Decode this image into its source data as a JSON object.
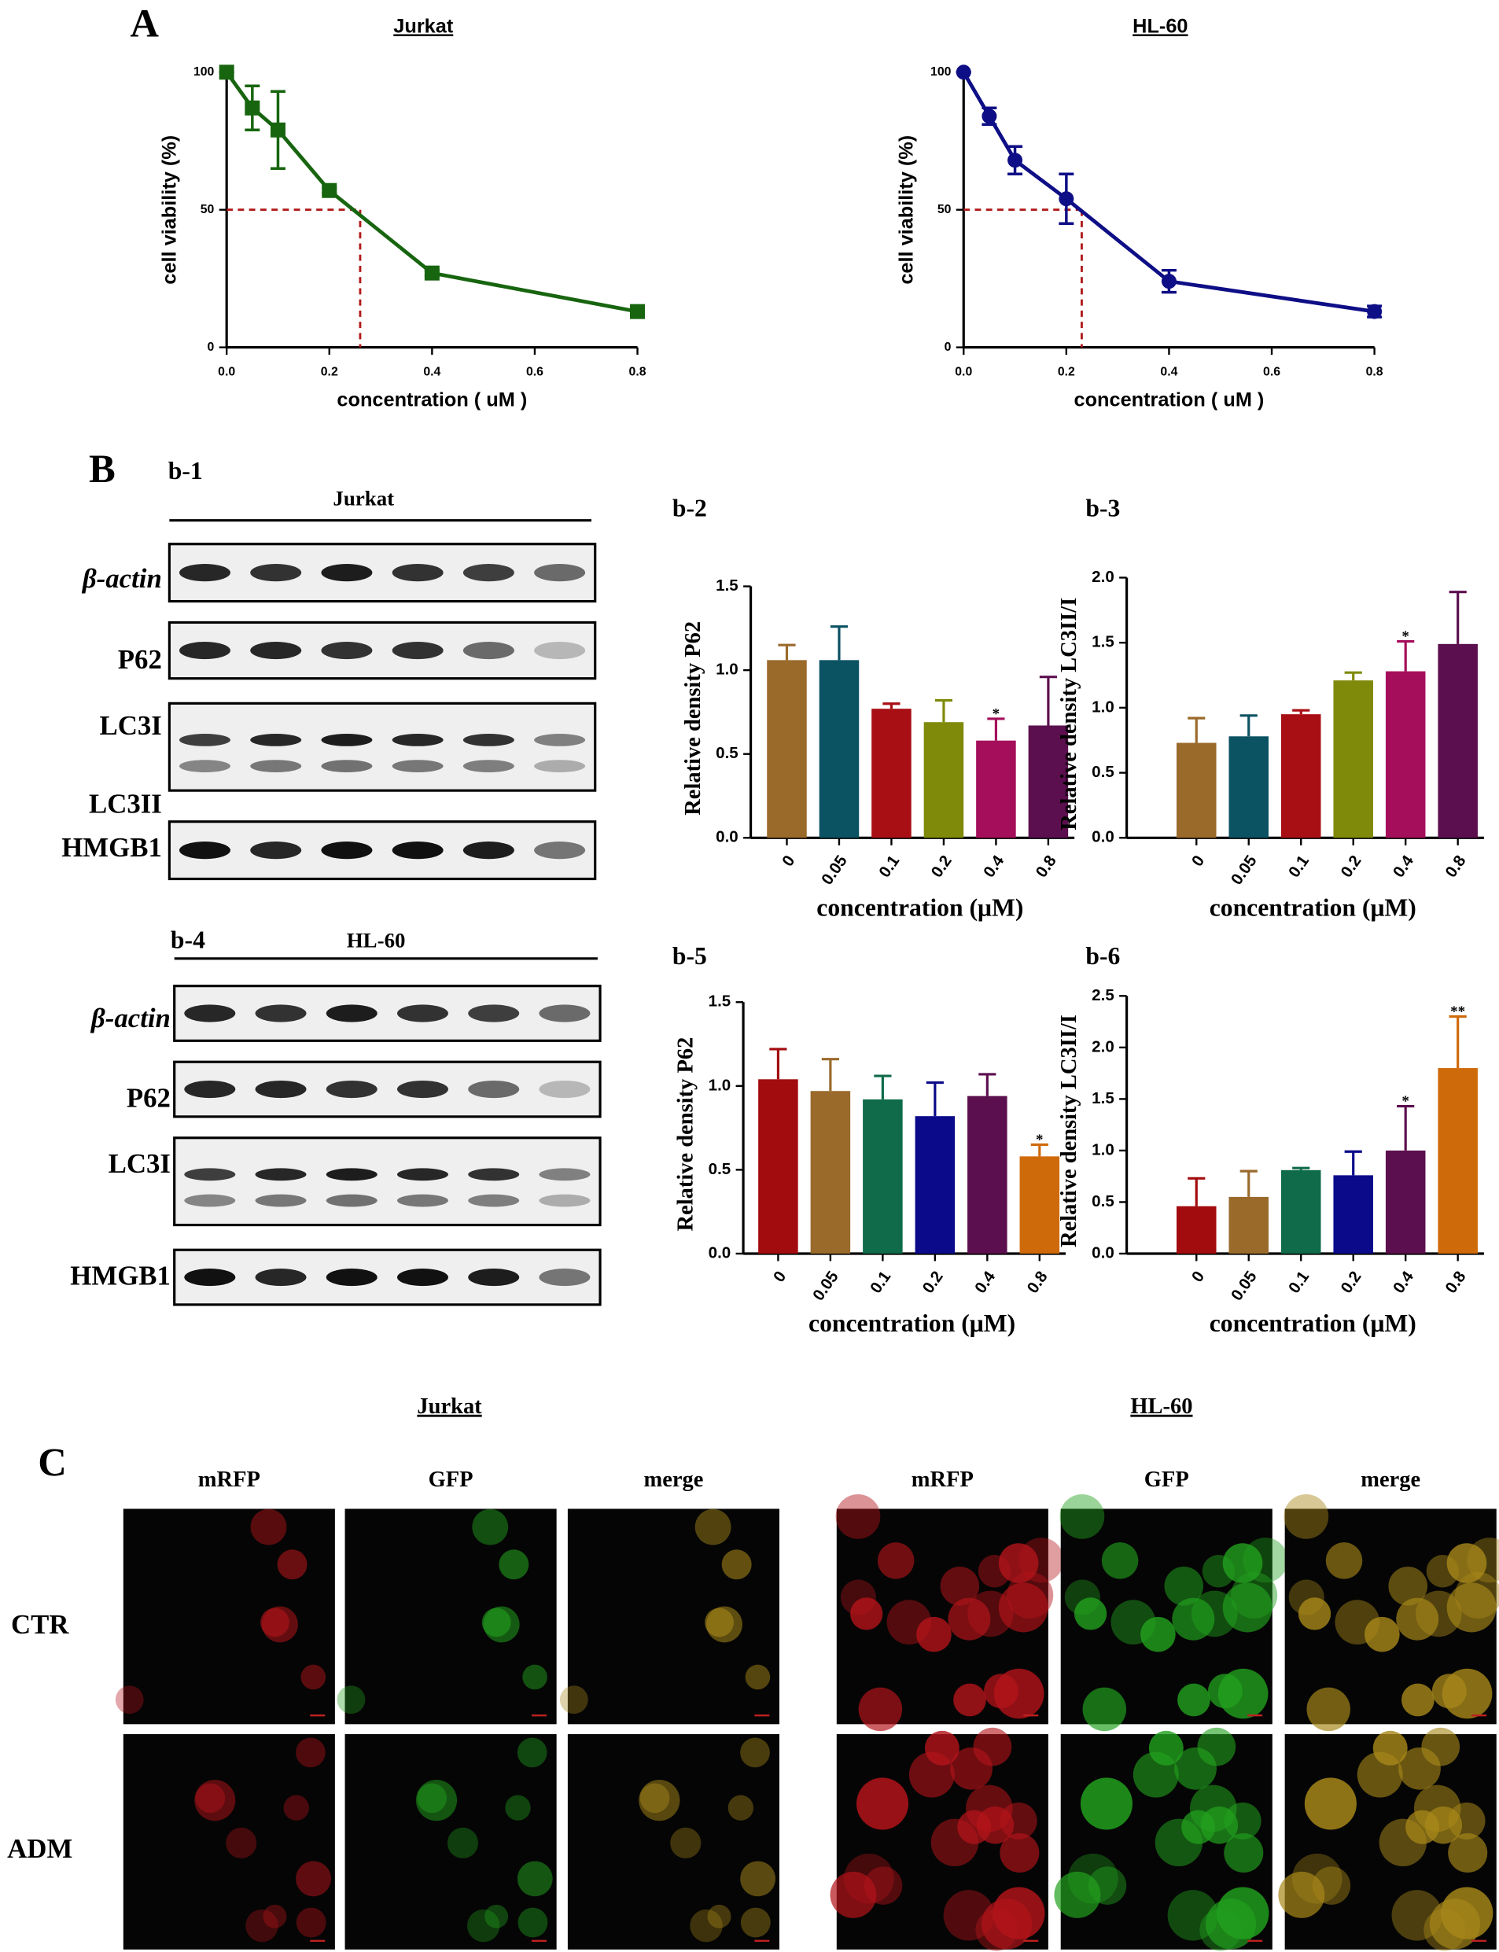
{
  "panel_labels": [
    "A",
    "B",
    "C"
  ],
  "chart_data": [
    {
      "type": "line",
      "title": "Jurkat",
      "xlabel": "concentration ( uM )",
      "ylabel": "cell viability (%)",
      "x": [
        0,
        0.05,
        0.1,
        0.2,
        0.4,
        0.8
      ],
      "series": [
        {
          "color": "#17650f",
          "marker": "square",
          "values": [
            100,
            87,
            79,
            57,
            27,
            13
          ],
          "errors": [
            0,
            8,
            14,
            1,
            1,
            1
          ]
        }
      ],
      "reference": {
        "x": 0.26,
        "y": 50,
        "color": "#b01818"
      },
      "xlim": [
        0,
        0.8
      ],
      "xticks": [
        {
          "value": 0,
          "label": "0.0"
        },
        0.2,
        0.4,
        0.6,
        0.8
      ],
      "ylim": [
        0,
        100
      ],
      "yticks": [
        0,
        50,
        100
      ]
    },
    {
      "type": "line",
      "title": "HL-60",
      "xlabel": "concentration ( uM )",
      "ylabel": "cell viability (%)",
      "x": [
        0,
        0.05,
        0.1,
        0.2,
        0.4,
        0.8
      ],
      "series": [
        {
          "color": "#0e0e86",
          "marker": "circle",
          "values": [
            100,
            84,
            68,
            54,
            24,
            13
          ],
          "errors": [
            0,
            3,
            5,
            9,
            4,
            2
          ]
        }
      ],
      "reference": {
        "x": 0.23,
        "y": 50,
        "color": "#b01818"
      },
      "xlim": [
        0,
        0.8
      ],
      "xticks": [
        {
          "value": 0,
          "label": "0.0"
        },
        0.2,
        0.4,
        0.6,
        0.8
      ],
      "ylim": [
        0,
        100
      ],
      "yticks": [
        0,
        50,
        100
      ]
    },
    {
      "type": "bar",
      "title": "b-2",
      "xlabel": "concentration (μM)",
      "ylabel": "Relative density P62",
      "categories": [
        "0",
        "0.05",
        "0.1",
        "0.2",
        "0.4",
        "0.8"
      ],
      "values": [
        1.06,
        1.06,
        0.77,
        0.69,
        0.58,
        0.67
      ],
      "errors": [
        0.09,
        0.2,
        0.03,
        0.13,
        0.13,
        0.29
      ],
      "colors": [
        "#9a6a2b",
        "#0b5263",
        "#a80f15",
        "#7f8a0a",
        "#a50e5a",
        "#5c0f4e"
      ],
      "annotations": [
        {
          "text": "*",
          "category": "0.4"
        }
      ],
      "ylim": [
        0,
        1.5
      ],
      "yticks": [
        {
          "value": 0,
          "label": "0.0"
        },
        0.5,
        {
          "value": 1,
          "label": "1.0"
        },
        1.5
      ]
    },
    {
      "type": "bar",
      "title": "b-3",
      "xlabel": "concentration (μM)",
      "ylabel": "Relative density LC3II/I",
      "categories": [
        "0",
        "0.05",
        "0.1",
        "0.2",
        "0.4",
        "0.8"
      ],
      "values": [
        0.73,
        0.78,
        0.95,
        1.21,
        1.28,
        1.49
      ],
      "errors": [
        0.19,
        0.16,
        0.03,
        0.06,
        0.23,
        0.4
      ],
      "colors": [
        "#9a6a2b",
        "#0b5263",
        "#a80f15",
        "#7f8a0a",
        "#a50e5a",
        "#5c0f4e"
      ],
      "annotations": [
        {
          "text": "*",
          "category": "0.4"
        }
      ],
      "ylim": [
        0,
        2
      ],
      "yticks": [
        {
          "value": 0,
          "label": "0.0"
        },
        0.5,
        {
          "value": 1,
          "label": "1.0"
        },
        1.5,
        {
          "value": 2,
          "label": "2.0"
        }
      ]
    },
    {
      "type": "bar",
      "title": "b-5",
      "xlabel": "concentration (μM)",
      "ylabel": "Relative density P62",
      "categories": [
        "0",
        "0.05",
        "0.1",
        "0.2",
        "0.4",
        "0.8"
      ],
      "values": [
        1.04,
        0.97,
        0.92,
        0.82,
        0.94,
        0.58
      ],
      "errors": [
        0.18,
        0.19,
        0.14,
        0.2,
        0.13,
        0.07
      ],
      "colors": [
        "#a20c0f",
        "#9a6a2b",
        "#0f6b4a",
        "#0a0a8a",
        "#5c0f4e",
        "#cf6a0a"
      ],
      "annotations": [
        {
          "text": "*",
          "category": "0.8"
        }
      ],
      "ylim": [
        0,
        1.5
      ],
      "yticks": [
        {
          "value": 0,
          "label": "0.0"
        },
        0.5,
        {
          "value": 1,
          "label": "1.0"
        },
        1.5
      ]
    },
    {
      "type": "bar",
      "title": "b-6",
      "xlabel": "concentration (μM)",
      "ylabel": "Relative density LC3II/I",
      "categories": [
        "0",
        "0.05",
        "0.1",
        "0.2",
        "0.4",
        "0.8"
      ],
      "values": [
        0.46,
        0.55,
        0.81,
        0.76,
        1.0,
        1.8
      ],
      "errors": [
        0.27,
        0.25,
        0.02,
        0.23,
        0.43,
        0.5
      ],
      "colors": [
        "#a20c0f",
        "#9a6a2b",
        "#0f6b4a",
        "#0a0a8a",
        "#5c0f4e",
        "#cf6a0a"
      ],
      "annotations": [
        {
          "text": "*",
          "category": "0.4"
        },
        {
          "text": "**",
          "category": "0.8"
        }
      ],
      "ylim": [
        0,
        2.5
      ],
      "yticks": [
        {
          "value": 0,
          "label": "0.0"
        },
        0.5,
        {
          "value": 1,
          "label": "1.0"
        },
        1.5,
        {
          "value": 2,
          "label": "2.0"
        },
        2.5
      ]
    }
  ],
  "blots": [
    {
      "label": "b-1",
      "cell_line": "Jurkat",
      "proteins": [
        "β-actin",
        "P62",
        "LC3I",
        "LC3II",
        "HMGB1"
      ]
    },
    {
      "label": "b-4",
      "cell_line": "HL-60",
      "proteins": [
        "β-actin",
        "P62",
        "LC3I",
        "HMGB1"
      ]
    }
  ],
  "microscopy": {
    "groups": [
      {
        "cell_line": "Jurkat",
        "channels": [
          "mRFP",
          "GFP",
          "merge"
        ]
      },
      {
        "cell_line": "HL-60",
        "channels": [
          "mRFP",
          "GFP",
          "merge"
        ]
      }
    ],
    "rows": [
      "CTR",
      "ADM"
    ]
  }
}
